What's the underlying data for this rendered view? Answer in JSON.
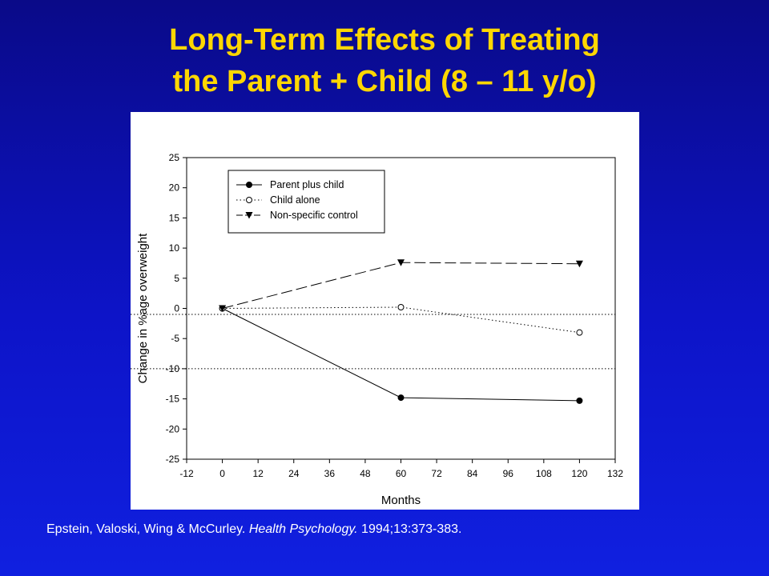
{
  "slide": {
    "title_line1": "Long-Term Effects of Treating",
    "title_line2": "the Parent + Child (8 – 11 y/o)",
    "citation_authors": "Epstein, Valoski, Wing & McCurley. ",
    "citation_journal": "Health Psychology.",
    "citation_ref": " 1994;13:373-383."
  },
  "colors": {
    "background": "#0d14c8",
    "title": "#ffd700",
    "citation": "#ffffff",
    "series": "#000000"
  },
  "chart_data": {
    "type": "line",
    "title": "",
    "xlabel": "Months",
    "ylabel": "Change in %age overweight",
    "xlim": [
      -12,
      132
    ],
    "ylim": [
      -25,
      25
    ],
    "x_ticks": [
      -12,
      0,
      12,
      24,
      36,
      48,
      60,
      72,
      84,
      96,
      108,
      120,
      132
    ],
    "y_ticks": [
      25,
      20,
      15,
      10,
      5,
      0,
      -5,
      -10,
      -15,
      -20,
      -25
    ],
    "reference_lines_y": [
      -1,
      -10
    ],
    "legend_position": "top-left",
    "grid": false,
    "series": [
      {
        "name": "Parent plus child",
        "style": "solid",
        "marker": "filled-circle",
        "x": [
          0,
          60,
          120
        ],
        "y": [
          0,
          -14.8,
          -15.3
        ]
      },
      {
        "name": "Child alone",
        "style": "dotted",
        "marker": "open-circle",
        "x": [
          0,
          60,
          120
        ],
        "y": [
          0,
          0.2,
          -4.0
        ]
      },
      {
        "name": "Non-specific control",
        "style": "dashed",
        "marker": "filled-triangle-down",
        "x": [
          0,
          60,
          120
        ],
        "y": [
          0,
          7.6,
          7.4
        ]
      }
    ]
  }
}
